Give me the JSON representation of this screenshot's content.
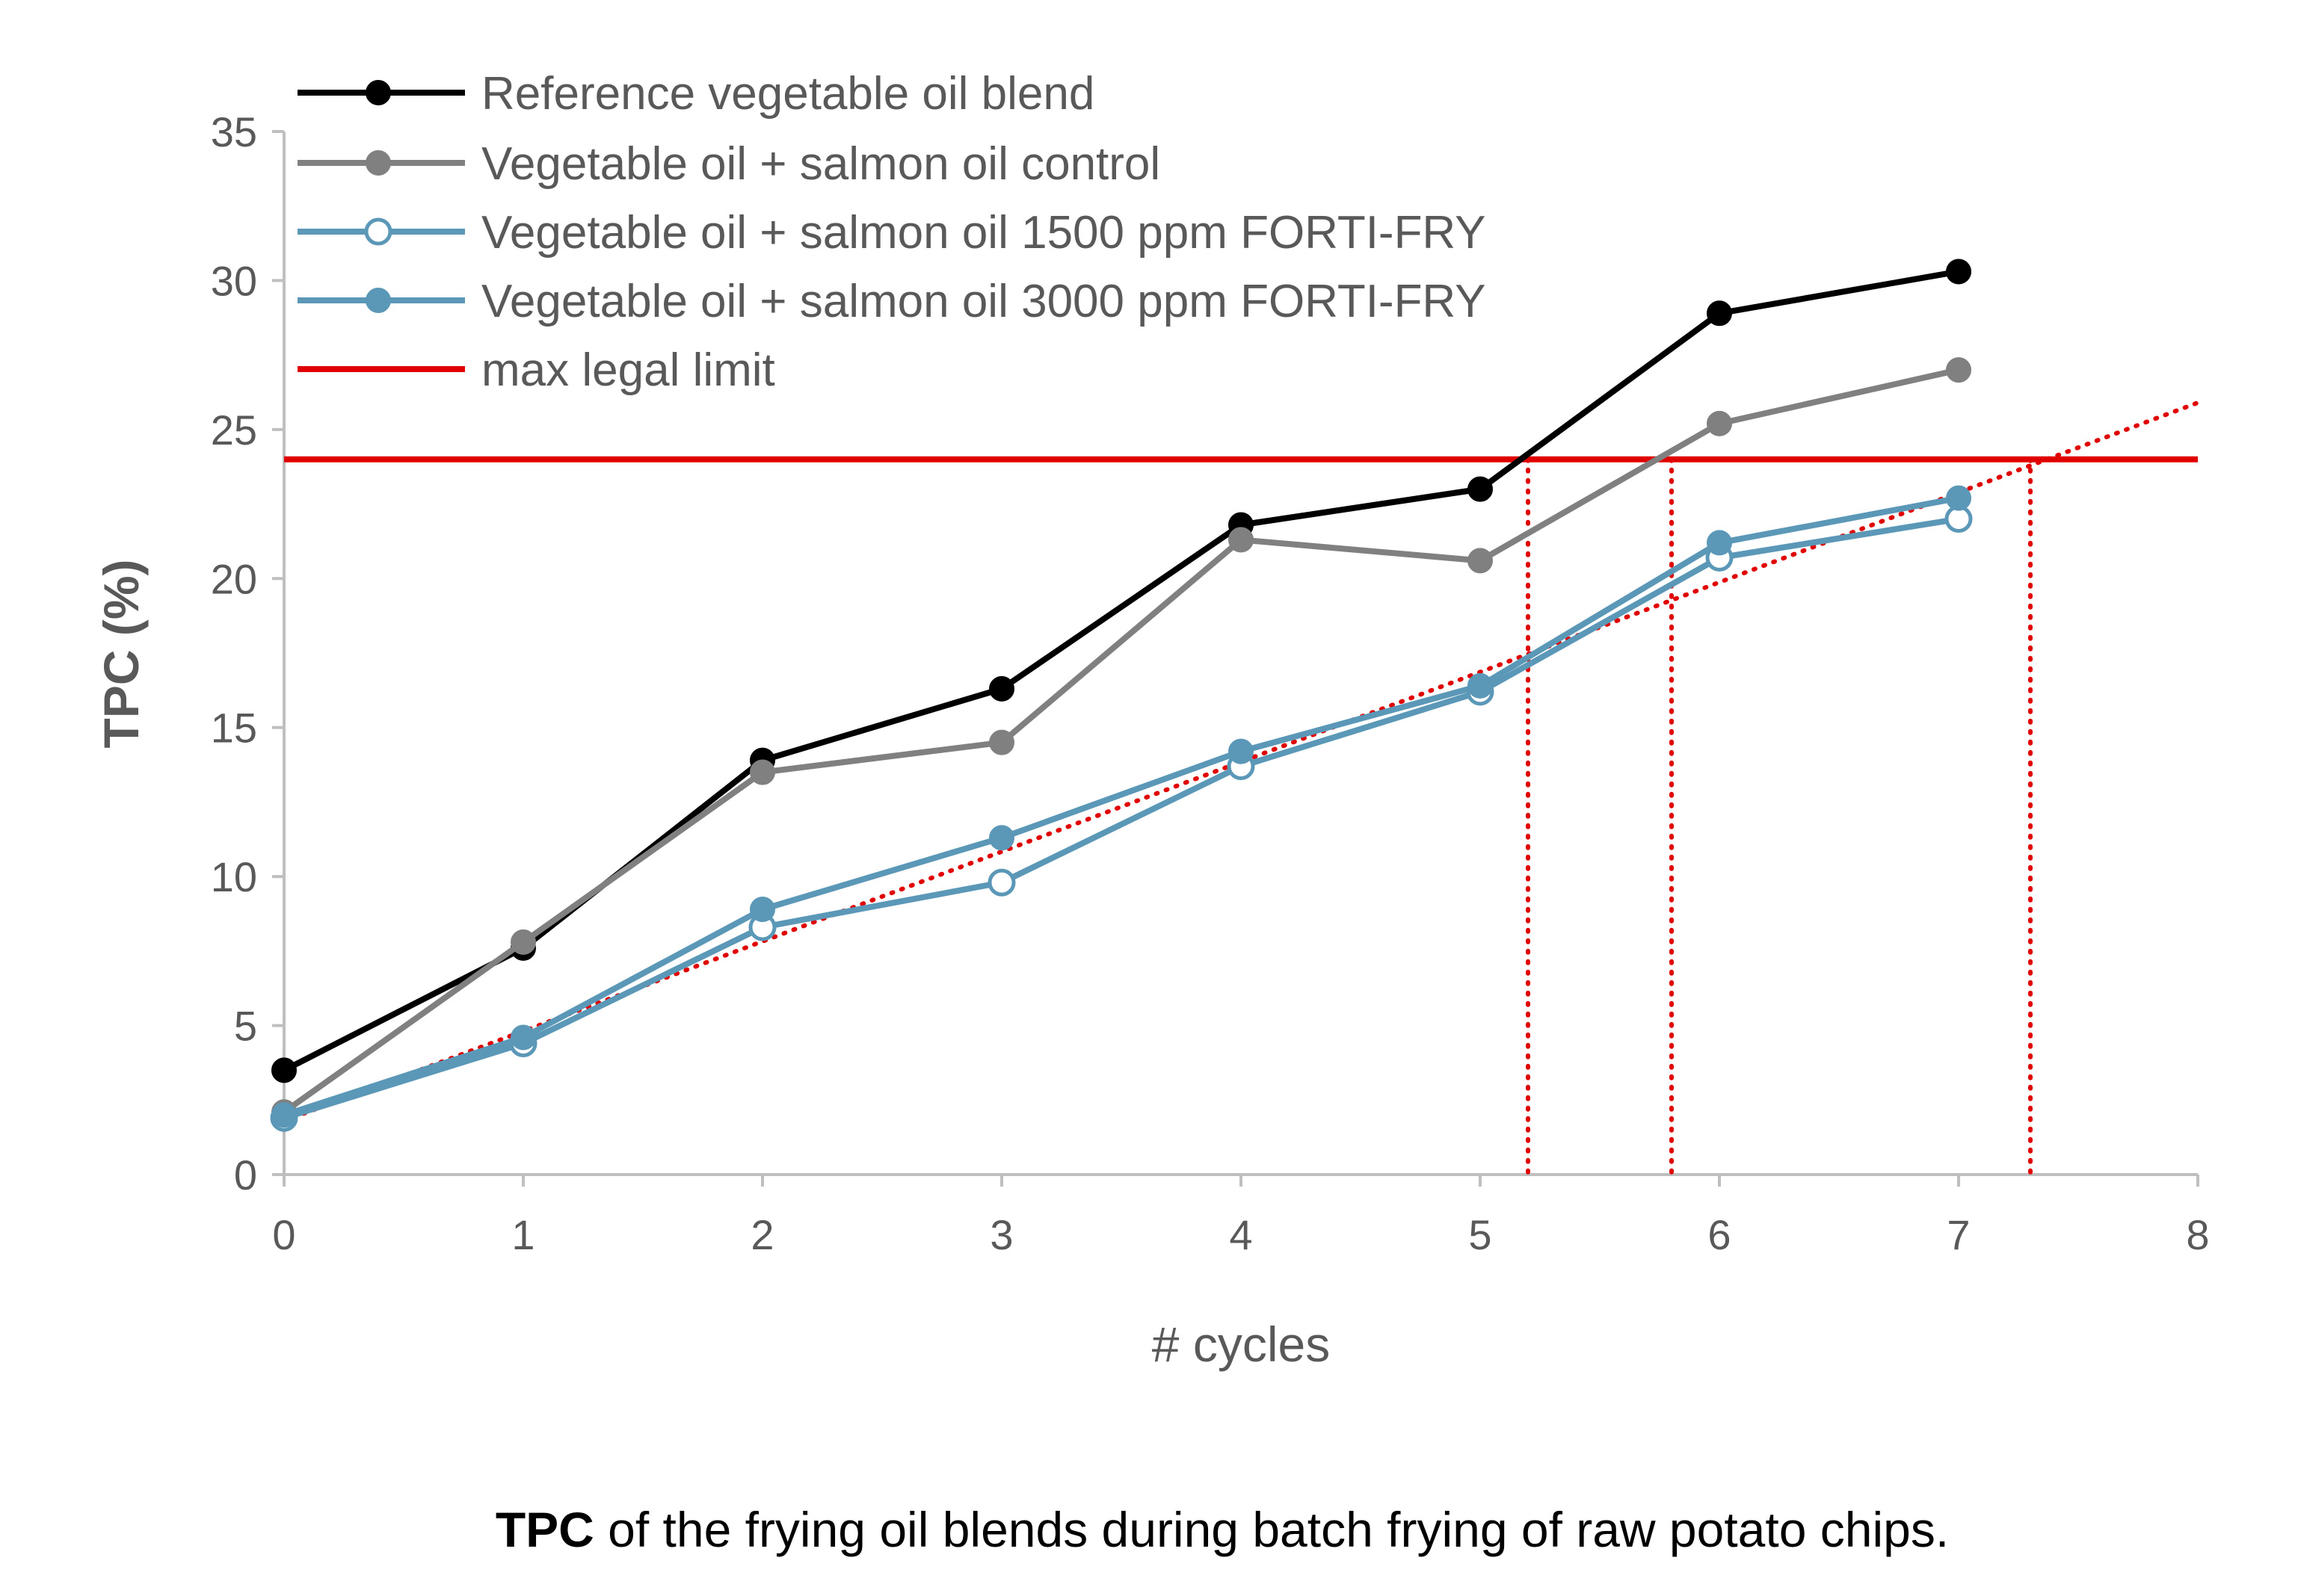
{
  "chart_data": {
    "type": "line",
    "title": "",
    "caption_bold": "TPC",
    "caption_rest": " of the frying oil blends during batch frying of raw potato chips.",
    "xlabel": "# cycles",
    "ylabel": "TPC (%)",
    "xlim": [
      0,
      8
    ],
    "ylim": [
      0,
      35
    ],
    "xticks": [
      0,
      1,
      2,
      3,
      4,
      5,
      6,
      7,
      8
    ],
    "yticks": [
      0,
      5,
      10,
      15,
      20,
      25,
      30,
      35
    ],
    "grid": false,
    "legend_position": "top-left",
    "x": [
      0,
      1,
      2,
      3,
      4,
      5,
      6,
      7
    ],
    "series": [
      {
        "name": "Reference vegetable oil blend",
        "color": "#000000",
        "marker": "filled",
        "values": [
          3.5,
          7.6,
          13.9,
          16.3,
          21.8,
          23.0,
          28.9,
          30.3
        ]
      },
      {
        "name": "Vegetable oil + salmon oil control",
        "color": "#808080",
        "marker": "filled",
        "values": [
          2.1,
          7.8,
          13.5,
          14.5,
          21.3,
          20.6,
          25.2,
          27.0
        ]
      },
      {
        "name": "Vegetable oil + salmon oil 1500 ppm FORTI-FRY",
        "color": "#5b97b7",
        "marker": "open",
        "values": [
          1.9,
          4.4,
          8.3,
          9.8,
          13.7,
          16.2,
          20.7,
          22.0
        ]
      },
      {
        "name": "Vegetable oil + salmon oil 3000 ppm FORTI-FRY",
        "color": "#5b97b7",
        "marker": "filled",
        "values": [
          2.0,
          4.6,
          8.9,
          11.3,
          14.2,
          16.4,
          21.2,
          22.7
        ]
      }
    ],
    "limit_line": {
      "name": "max legal limit",
      "value": 24,
      "color": "#e00000"
    },
    "trendline": {
      "color": "#e00000",
      "style": "dotted",
      "from": [
        0,
        1.8
      ],
      "to": [
        8,
        25.9
      ]
    },
    "intersection_markers": {
      "color": "#e00000",
      "style": "dotted",
      "x": [
        5.2,
        5.8,
        7.3
      ]
    }
  }
}
